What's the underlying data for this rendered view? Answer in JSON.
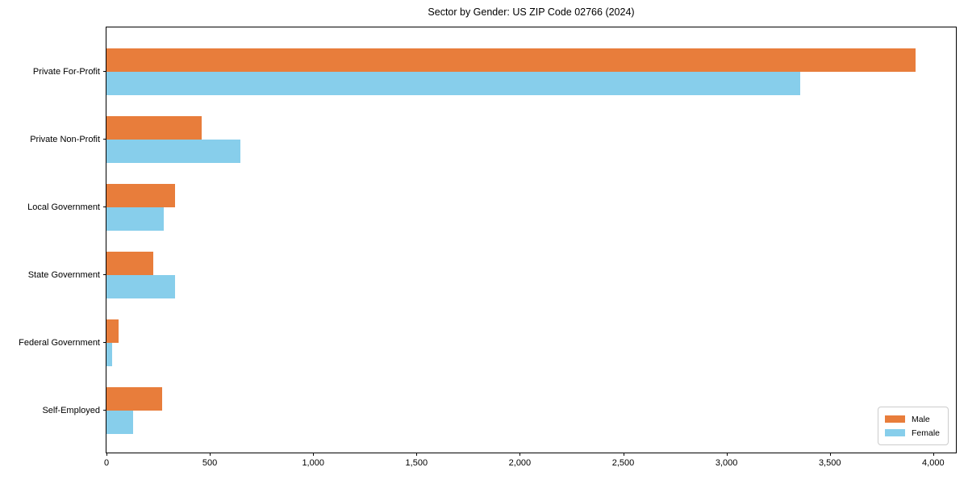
{
  "chart_data": {
    "type": "bar",
    "orientation": "horizontal",
    "title": "Sector by Gender: US ZIP Code 02766 (2024)",
    "categories": [
      "Private For-Profit",
      "Private Non-Profit",
      "Local Government",
      "State Government",
      "Federal Government",
      "Self-Employed"
    ],
    "series": [
      {
        "name": "Male",
        "color": "#E87D3B",
        "values": [
          3915,
          462,
          333,
          227,
          57,
          268
        ]
      },
      {
        "name": "Female",
        "color": "#87CEEB",
        "values": [
          3356,
          649,
          276,
          332,
          28,
          127
        ]
      }
    ],
    "xlabel": "",
    "ylabel": "",
    "xlim": [
      0,
      4110
    ],
    "x_ticks": [
      {
        "value": 0,
        "label": "0"
      },
      {
        "value": 500,
        "label": "500"
      },
      {
        "value": 1000,
        "label": "1,000"
      },
      {
        "value": 1500,
        "label": "1,500"
      },
      {
        "value": 2000,
        "label": "2,000"
      },
      {
        "value": 2500,
        "label": "2,500"
      },
      {
        "value": 3000,
        "label": "3,000"
      },
      {
        "value": 3500,
        "label": "3,500"
      },
      {
        "value": 4000,
        "label": "4,000"
      }
    ],
    "grid": false,
    "legend": {
      "position": "lower-right",
      "entries": [
        "Male",
        "Female"
      ]
    }
  }
}
